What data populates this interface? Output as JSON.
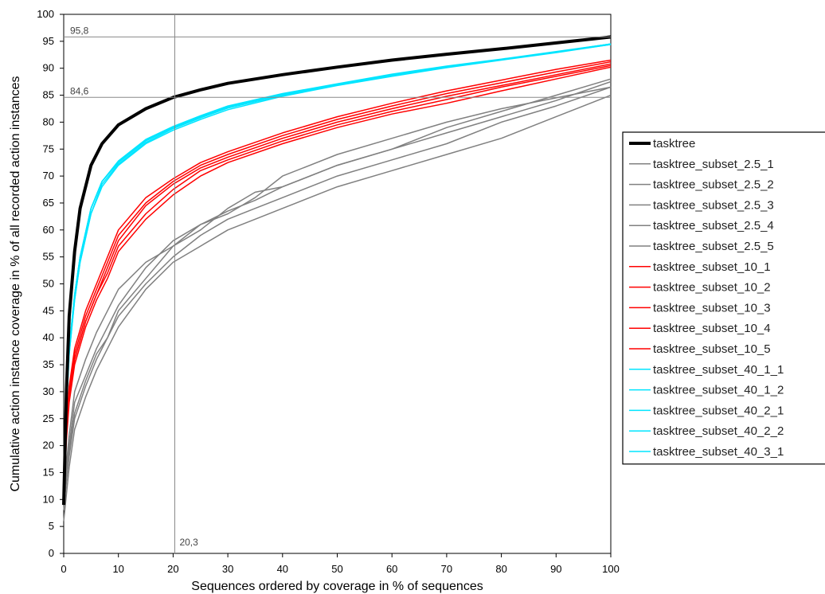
{
  "chart_data": {
    "type": "line",
    "xlabel": "Sequences ordered by coverage in % of sequences",
    "ylabel": "Cumulative action instance coverage in % of all recorded action instances",
    "xlim": [
      0,
      100
    ],
    "ylim": [
      0,
      100
    ],
    "xticks": [
      0,
      10,
      20,
      30,
      40,
      50,
      60,
      70,
      80,
      90,
      100
    ],
    "yticks": [
      0,
      5,
      10,
      15,
      20,
      25,
      30,
      35,
      40,
      45,
      50,
      55,
      60,
      65,
      70,
      75,
      80,
      85,
      90,
      95,
      100
    ],
    "grid": false,
    "legend_position": "right",
    "reference_lines": [
      {
        "axis": "y",
        "value": 95.8,
        "label": "95,8"
      },
      {
        "axis": "y",
        "value": 84.6,
        "label": "84,6"
      },
      {
        "axis": "x",
        "value": 20.3,
        "label": "20,3"
      }
    ],
    "colors": {
      "tasktree": "#000000",
      "subset_2_5": "#808080",
      "subset_10": "#ff0000",
      "subset_40": "#00e5ff"
    },
    "series": [
      {
        "name": "tasktree",
        "color": "#000000",
        "width": 4,
        "x": [
          0,
          0.5,
          1,
          2,
          3,
          5,
          7,
          10,
          15,
          20,
          25,
          30,
          40,
          50,
          60,
          70,
          80,
          90,
          100
        ],
        "y": [
          9,
          30,
          44,
          56,
          64,
          72,
          76,
          79.5,
          82.5,
          84.6,
          86,
          87.2,
          88.8,
          90.2,
          91.5,
          92.6,
          93.6,
          94.7,
          95.8
        ]
      },
      {
        "name": "tasktree_subset_2.5_1",
        "color": "#808080",
        "width": 1.5,
        "x": [
          0,
          1,
          2,
          4,
          6,
          8,
          10,
          15,
          20,
          25,
          30,
          35,
          40,
          50,
          60,
          70,
          80,
          90,
          100
        ],
        "y": [
          9,
          18,
          25,
          31,
          36,
          40,
          45,
          51,
          57,
          61,
          63.5,
          65.5,
          68,
          72,
          75,
          78,
          81,
          84,
          87.5
        ]
      },
      {
        "name": "tasktree_subset_2.5_2",
        "color": "#808080",
        "width": 1.5,
        "x": [
          0,
          1,
          2,
          4,
          6,
          8,
          10,
          15,
          20,
          25,
          30,
          35,
          40,
          50,
          60,
          70,
          80,
          90,
          100
        ],
        "y": [
          6,
          16,
          23,
          29,
          34,
          38,
          42,
          49,
          54,
          57,
          60,
          62,
          64,
          68,
          71,
          74,
          77,
          81,
          85
        ]
      },
      {
        "name": "tasktree_subset_2.5_3",
        "color": "#808080",
        "width": 1.5,
        "x": [
          0,
          1,
          2,
          4,
          6,
          8,
          10,
          15,
          20,
          25,
          30,
          35,
          40,
          50,
          60,
          70,
          80,
          90,
          100
        ],
        "y": [
          10,
          20,
          28,
          33,
          38,
          42,
          46,
          53,
          58,
          61,
          63,
          66,
          70,
          74,
          77,
          80,
          82.5,
          84.5,
          86.5
        ]
      },
      {
        "name": "tasktree_subset_2.5_4",
        "color": "#808080",
        "width": 1.5,
        "x": [
          0,
          1,
          2,
          4,
          6,
          8,
          10,
          15,
          20,
          25,
          30,
          35,
          40,
          50,
          60,
          70,
          80,
          90,
          100
        ],
        "y": [
          11,
          22,
          30,
          36,
          41,
          45,
          49,
          54,
          57,
          60,
          64,
          67,
          68,
          72,
          75,
          79,
          82,
          85,
          88
        ]
      },
      {
        "name": "tasktree_subset_2.5_5",
        "color": "#808080",
        "width": 1.5,
        "x": [
          0,
          1,
          2,
          4,
          6,
          8,
          10,
          15,
          20,
          25,
          30,
          35,
          40,
          50,
          60,
          70,
          80,
          90,
          100
        ],
        "y": [
          8,
          19,
          26,
          32,
          37,
          40,
          44,
          50,
          55,
          59,
          62,
          64,
          66,
          70,
          73,
          76,
          80,
          83,
          86.5
        ]
      },
      {
        "name": "tasktree_subset_10_1",
        "color": "#ff0000",
        "width": 1.5,
        "x": [
          0,
          0.5,
          1,
          2,
          4,
          6,
          8,
          10,
          15,
          20,
          25,
          30,
          40,
          50,
          60,
          70,
          80,
          90,
          100
        ],
        "y": [
          11,
          22,
          29,
          36,
          43,
          48,
          53,
          58,
          64.5,
          68.5,
          71.5,
          73.5,
          77,
          80,
          82.5,
          84.8,
          86.8,
          88.8,
          90.8
        ]
      },
      {
        "name": "tasktree_subset_10_2",
        "color": "#ff0000",
        "width": 1.5,
        "x": [
          0,
          0.5,
          1,
          2,
          4,
          6,
          8,
          10,
          15,
          20,
          25,
          30,
          40,
          50,
          60,
          70,
          80,
          90,
          100
        ],
        "y": [
          12,
          24,
          31,
          38,
          45,
          50,
          55,
          60,
          66,
          69.5,
          72.5,
          74.5,
          78,
          81,
          83.5,
          85.8,
          87.8,
          89.8,
          91.5
        ]
      },
      {
        "name": "tasktree_subset_10_3",
        "color": "#ff0000",
        "width": 1.5,
        "x": [
          0,
          0.5,
          1,
          2,
          4,
          6,
          8,
          10,
          15,
          20,
          25,
          30,
          40,
          50,
          60,
          70,
          80,
          90,
          100
        ],
        "y": [
          10,
          21,
          28,
          35,
          42,
          47,
          51,
          56,
          62,
          66.5,
          70,
          72.5,
          76,
          79,
          81.5,
          83.5,
          85.8,
          88,
          90.2
        ]
      },
      {
        "name": "tasktree_subset_10_4",
        "color": "#ff0000",
        "width": 1.5,
        "x": [
          0,
          0.5,
          1,
          2,
          4,
          6,
          8,
          10,
          15,
          20,
          25,
          30,
          40,
          50,
          60,
          70,
          80,
          90,
          100
        ],
        "y": [
          12,
          23,
          30,
          37,
          44,
          49,
          54,
          59,
          65,
          69,
          72,
          74,
          77.5,
          80.5,
          83,
          85.3,
          87.3,
          89.3,
          91.2
        ]
      },
      {
        "name": "tasktree_subset_10_5",
        "color": "#ff0000",
        "width": 1.5,
        "x": [
          0,
          0.5,
          1,
          2,
          4,
          6,
          8,
          10,
          15,
          20,
          25,
          30,
          40,
          50,
          60,
          70,
          80,
          90,
          100
        ],
        "y": [
          11,
          22,
          29,
          36,
          43,
          48,
          52,
          57,
          63,
          67.5,
          71,
          73,
          76.5,
          79.5,
          82,
          84.2,
          86.5,
          88.5,
          90.5
        ]
      },
      {
        "name": "tasktree_subset_40_1_1",
        "color": "#00e5ff",
        "width": 1.5,
        "x": [
          0,
          0.5,
          1,
          2,
          3,
          5,
          7,
          10,
          15,
          20,
          25,
          30,
          40,
          50,
          60,
          70,
          80,
          90,
          100
        ],
        "y": [
          12,
          28,
          38,
          48,
          55,
          64,
          69,
          72.5,
          76.5,
          79,
          81,
          82.8,
          85.2,
          87,
          88.8,
          90.3,
          91.6,
          93,
          94.5
        ]
      },
      {
        "name": "tasktree_subset_40_1_2",
        "color": "#00e5ff",
        "width": 1.5,
        "x": [
          0,
          0.5,
          1,
          2,
          3,
          5,
          7,
          10,
          15,
          20,
          25,
          30,
          40,
          50,
          60,
          70,
          80,
          90,
          100
        ],
        "y": [
          12,
          27,
          37,
          47,
          54,
          63,
          68,
          72,
          76,
          78.5,
          80.5,
          82.3,
          84.8,
          86.8,
          88.5,
          90.1,
          91.5,
          92.9,
          94.4
        ]
      },
      {
        "name": "tasktree_subset_40_2_1",
        "color": "#00e5ff",
        "width": 1.5,
        "x": [
          0,
          0.5,
          1,
          2,
          3,
          5,
          7,
          10,
          15,
          20,
          25,
          30,
          40,
          50,
          60,
          70,
          80,
          90,
          100
        ],
        "y": [
          13,
          28,
          38,
          48,
          55,
          64,
          69,
          72.8,
          76.8,
          79.2,
          81.2,
          83,
          85.3,
          87.1,
          88.9,
          90.4,
          91.7,
          93.1,
          94.5
        ]
      },
      {
        "name": "tasktree_subset_40_2_2",
        "color": "#00e5ff",
        "width": 1.5,
        "x": [
          0,
          0.5,
          1,
          2,
          3,
          5,
          7,
          10,
          15,
          20,
          25,
          30,
          40,
          50,
          60,
          70,
          80,
          90,
          100
        ],
        "y": [
          12,
          27,
          37,
          47,
          54,
          63,
          68.5,
          72.2,
          76.2,
          78.8,
          80.8,
          82.6,
          85,
          86.9,
          88.7,
          90.2,
          91.6,
          93,
          94.4
        ]
      },
      {
        "name": "tasktree_subset_40_3_1",
        "color": "#00e5ff",
        "width": 1.5,
        "x": [
          0,
          0.5,
          1,
          2,
          3,
          5,
          7,
          10,
          15,
          20,
          25,
          30,
          40,
          50,
          60,
          70,
          80,
          90,
          100
        ],
        "y": [
          12,
          28,
          38,
          48,
          55,
          64,
          69,
          72.6,
          76.6,
          79.1,
          81.1,
          82.9,
          85.2,
          87,
          88.8,
          90.3,
          91.6,
          93,
          94.5
        ]
      }
    ]
  }
}
